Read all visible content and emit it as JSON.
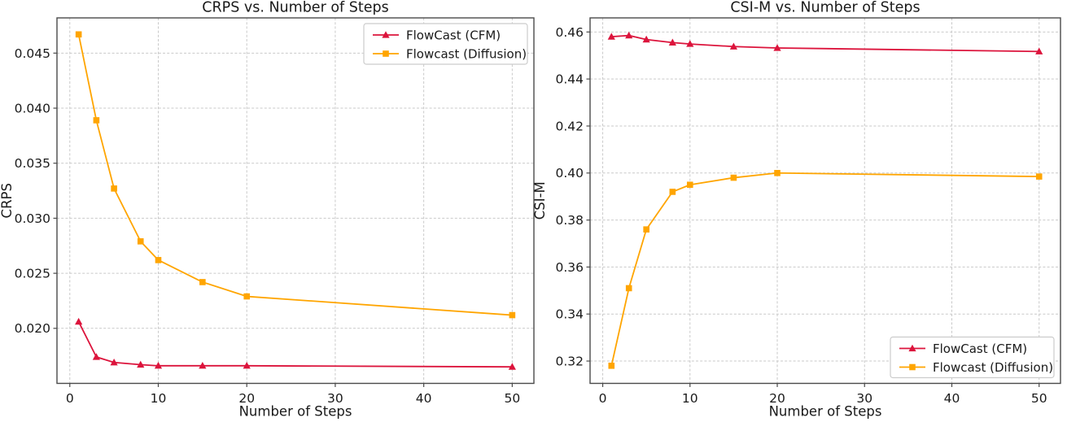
{
  "figure": {
    "background": "#ffffff"
  },
  "chart_data": [
    {
      "type": "line",
      "title": "CRPS vs. Number of Steps",
      "xlabel": "Number of Steps",
      "ylabel": "CRPS",
      "x": [
        1,
        3,
        5,
        8,
        10,
        15,
        20,
        50
      ],
      "series": [
        {
          "name": "FlowCast (CFM)",
          "color": "#DC143C",
          "marker": "triangle",
          "values": [
            0.0206,
            0.0174,
            0.0169,
            0.0167,
            0.0166,
            0.0166,
            0.0166,
            0.0165
          ]
        },
        {
          "name": "Flowcast (Diffusion)",
          "color": "#FFA500",
          "marker": "square",
          "values": [
            0.0467,
            0.0389,
            0.0327,
            0.0279,
            0.0262,
            0.0242,
            0.0229,
            0.0212
          ]
        }
      ],
      "xlim": [
        -1.45,
        52.45
      ],
      "ylim": [
        0.015,
        0.0482
      ],
      "xticks": [
        0,
        10,
        20,
        30,
        40,
        50
      ],
      "xtick_labels": [
        "0",
        "10",
        "20",
        "30",
        "40",
        "50"
      ],
      "yticks": [
        0.02,
        0.025,
        0.03,
        0.035,
        0.04,
        0.045
      ],
      "ytick_labels": [
        "0.020",
        "0.025",
        "0.030",
        "0.035",
        "0.040",
        "0.045"
      ],
      "grid": true,
      "legend_position": "upper-right"
    },
    {
      "type": "line",
      "title": "CSI-M vs. Number of Steps",
      "xlabel": "Number of Steps",
      "ylabel": "CSI-M",
      "x": [
        1,
        3,
        5,
        8,
        10,
        15,
        20,
        50
      ],
      "series": [
        {
          "name": "FlowCast (CFM)",
          "color": "#DC143C",
          "marker": "triangle",
          "values": [
            0.458,
            0.4585,
            0.4568,
            0.4555,
            0.4549,
            0.4538,
            0.4532,
            0.4517
          ]
        },
        {
          "name": "Flowcast (Diffusion)",
          "color": "#FFA500",
          "marker": "square",
          "values": [
            0.318,
            0.351,
            0.376,
            0.392,
            0.395,
            0.398,
            0.4,
            0.3985
          ]
        }
      ],
      "xlim": [
        -1.45,
        52.45
      ],
      "ylim": [
        0.3105,
        0.466
      ],
      "xticks": [
        0,
        10,
        20,
        30,
        40,
        50
      ],
      "xtick_labels": [
        "0",
        "10",
        "20",
        "30",
        "40",
        "50"
      ],
      "yticks": [
        0.32,
        0.34,
        0.36,
        0.38,
        0.4,
        0.42,
        0.44,
        0.46
      ],
      "ytick_labels": [
        "0.32",
        "0.34",
        "0.36",
        "0.38",
        "0.40",
        "0.42",
        "0.44",
        "0.46"
      ],
      "grid": true,
      "legend_position": "lower-right"
    }
  ],
  "style": {
    "grid_color": "#c9c9c9",
    "spine_color": "#4a4a4a",
    "text_color": "#1a1a1a"
  }
}
